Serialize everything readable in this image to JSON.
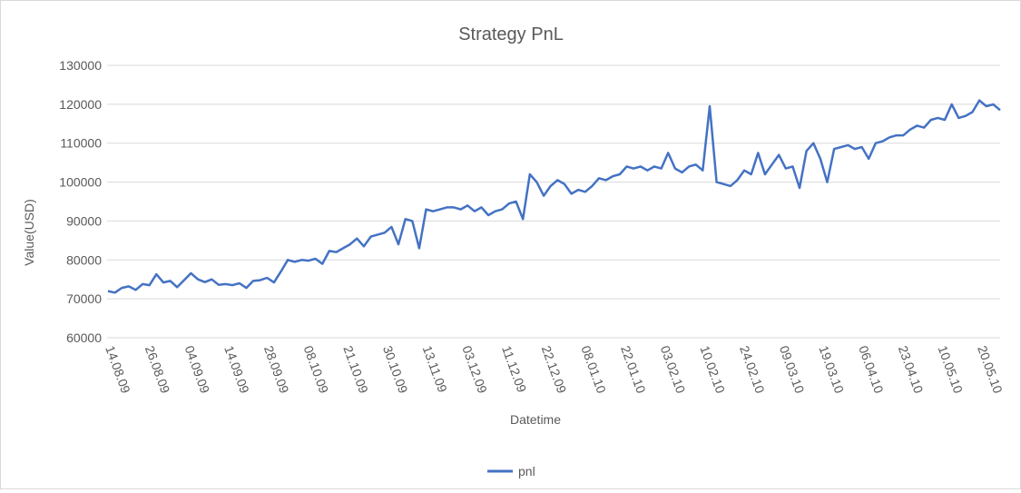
{
  "chart_data": {
    "type": "line",
    "title": "Strategy PnL",
    "xlabel": "Datetime",
    "ylabel": "Value(USD)",
    "ylim": [
      60000,
      130000
    ],
    "yticks": [
      60000,
      70000,
      80000,
      90000,
      100000,
      110000,
      120000,
      130000
    ],
    "grid": true,
    "legend_position": "bottom",
    "x_tick_labels": [
      "14.08.09",
      "26.08.09",
      "04.09.09",
      "14.09.09",
      "28.09.09",
      "08.10.09",
      "21.10.09",
      "30.10.09",
      "13.11.09",
      "03.12.09",
      "11.12.09",
      "22.12.09",
      "08.01.10",
      "22.01.10",
      "03.02.10",
      "10.02.10",
      "24.02.10",
      "09.03.10",
      "19.03.10",
      "06.04.10",
      "23.04.10",
      "10.05.10",
      "20.05.10"
    ],
    "series": [
      {
        "name": "pnl",
        "color": "#4472c4",
        "values": [
          72000,
          71600,
          72800,
          73200,
          72300,
          73800,
          73500,
          76300,
          74200,
          74600,
          73000,
          74800,
          76600,
          75000,
          74300,
          75000,
          73600,
          73800,
          73500,
          74000,
          72800,
          74600,
          74800,
          75400,
          74200,
          77000,
          80000,
          79500,
          80000,
          79800,
          80300,
          79000,
          82300,
          82000,
          83000,
          84000,
          85500,
          83500,
          86000,
          86500,
          87000,
          88500,
          84000,
          90500,
          90000,
          83000,
          93000,
          92500,
          93000,
          93500,
          93500,
          93000,
          94000,
          92500,
          93500,
          91500,
          92500,
          93000,
          94500,
          95000,
          90500,
          102000,
          100000,
          96500,
          99000,
          100500,
          99500,
          97000,
          98000,
          97500,
          99000,
          101000,
          100500,
          101500,
          102000,
          104000,
          103500,
          104000,
          103000,
          104000,
          103500,
          107500,
          103500,
          102500,
          104000,
          104500,
          103000,
          119500,
          100000,
          99500,
          99000,
          100500,
          103000,
          102000,
          107500,
          102000,
          104500,
          107000,
          103500,
          104000,
          98500,
          108000,
          110000,
          106000,
          100000,
          108500,
          109000,
          109500,
          108500,
          109000,
          106000,
          110000,
          110500,
          111500,
          112000,
          112000,
          113500,
          114500,
          114000,
          116000,
          116500,
          116000,
          120000,
          116500,
          117000,
          118000,
          121000,
          119500,
          120000,
          118500
        ]
      }
    ]
  }
}
